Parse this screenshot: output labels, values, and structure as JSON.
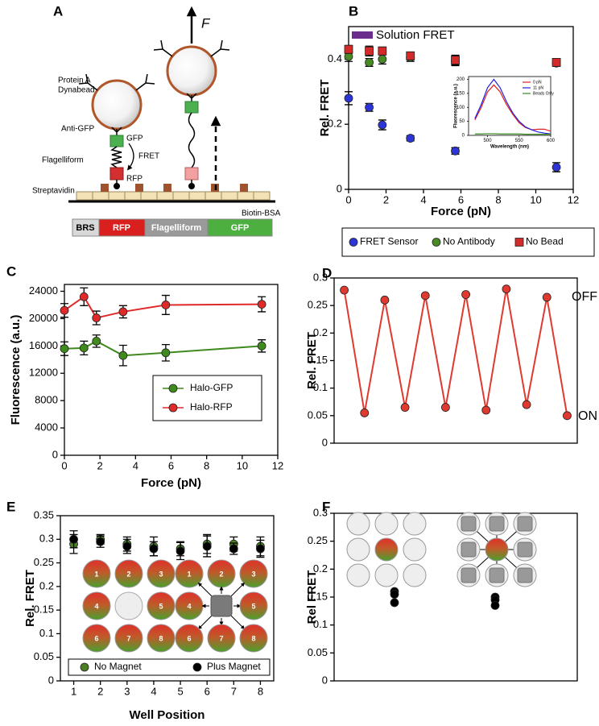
{
  "diagram": {
    "panel": "A",
    "force": "F",
    "bead": [
      "Protein A",
      "Dynabead"
    ],
    "anti_gfp": "Anti-GFP",
    "gfp": "GFP",
    "fret": "FRET",
    "flagelliform": "Flagelliform",
    "rfp": "RFP",
    "streptavidin": "Streptavidin",
    "biotin_bsa": "Biotin-BSA",
    "construct": [
      "BRS",
      "RFP",
      "Flagelliform",
      "GFP"
    ]
  },
  "chart_data": [
    {
      "panel": "B",
      "type": "scatter",
      "x_label": "Force (pN)",
      "y_label": "Rel. FRET",
      "x": [
        0,
        1.1,
        1.8,
        3.3,
        5.7,
        11.1
      ],
      "series": [
        {
          "name": "FRET Sensor",
          "color": "#2d35d8",
          "marker": "circle",
          "values": [
            0.28,
            0.252,
            0.198,
            0.157,
            0.118,
            0.068
          ],
          "errors": [
            0.02,
            0.012,
            0.015,
            0.008,
            0.01,
            0.014
          ]
        },
        {
          "name": "No Antibody",
          "color": "#4a8a26",
          "marker": "circle",
          "values": [
            0.408,
            0.39,
            0.4,
            0.405,
            0.395,
            0.388
          ],
          "errors": [
            0.015,
            0.012,
            0.015,
            0.012,
            0.015,
            0.01
          ]
        },
        {
          "name": "No Bead",
          "color": "#d42a2a",
          "marker": "square",
          "values": [
            0.43,
            0.425,
            0.425,
            0.41,
            0.397,
            0.39
          ],
          "errors": [
            0.012,
            0.015,
            0.012,
            0.012,
            0.015,
            0.012
          ]
        }
      ],
      "xlim": [
        0,
        12
      ],
      "xticks": [
        0,
        2,
        4,
        6,
        8,
        10,
        12
      ],
      "ylim": [
        0,
        0.5
      ],
      "yticks": [
        0,
        0.2,
        0.4
      ],
      "annotation": "Solution FRET",
      "annotation_color": "#6b2d8b",
      "legend": "bottom",
      "inset": {
        "type": "line",
        "x_label": "Wavelength (nm)",
        "y_label": "Fluorescence (a.u.)",
        "x": [
          480,
          490,
          500,
          510,
          520,
          530,
          540,
          550,
          560,
          570,
          580,
          590,
          600
        ],
        "series": [
          {
            "name": "0 pN",
            "color": "#e02020",
            "values": [
              55,
              100,
              155,
              180,
              155,
              110,
              75,
              45,
              28,
              20,
              22,
              22,
              15
            ]
          },
          {
            "name": "11 pN",
            "color": "#2020e0",
            "values": [
              60,
              110,
              170,
              200,
              170,
              120,
              80,
              50,
              30,
              20,
              12,
              8,
              5
            ]
          },
          {
            "name": "Beads Only",
            "color": "#3a8a20",
            "values": [
              5,
              5,
              6,
              6,
              5,
              5,
              5,
              5,
              4,
              4,
              4,
              4,
              4
            ]
          }
        ],
        "xlim": [
          470,
          600
        ],
        "xticks": [
          500,
          550,
          600
        ],
        "ylim": [
          0,
          210
        ],
        "yticks": [
          0,
          50,
          100,
          150,
          200
        ],
        "legend": "upper right"
      }
    },
    {
      "panel": "C",
      "type": "line",
      "x_label": "Force (pN)",
      "y_label": "Fluorescence (a.u.)",
      "x": [
        0,
        1.1,
        1.8,
        3.3,
        5.7,
        11.1
      ],
      "series": [
        {
          "name": "Halo-GFP",
          "color": "#3f8a1c",
          "marker": "circle",
          "values": [
            15600,
            15700,
            16700,
            14600,
            15000,
            16000
          ],
          "errors": [
            1000,
            1000,
            900,
            1500,
            1200,
            900
          ]
        },
        {
          "name": "Halo-RFP",
          "color": "#e02a2a",
          "marker": "circle",
          "values": [
            21200,
            23200,
            20100,
            21000,
            22000,
            22100
          ],
          "errors": [
            1000,
            1300,
            1000,
            900,
            1400,
            1100
          ]
        }
      ],
      "xlim": [
        0,
        12
      ],
      "xticks": [
        0,
        2,
        4,
        6,
        8,
        10,
        12
      ],
      "ylim": [
        0,
        25000
      ],
      "yticks": [
        0,
        4000,
        8000,
        12000,
        16000,
        20000,
        24000
      ],
      "legend": "lower right"
    },
    {
      "panel": "D",
      "type": "line",
      "y_label": "Rel. FRET",
      "categories": [
        null,
        null,
        null,
        null,
        null,
        null,
        null,
        null,
        null,
        null,
        null,
        null
      ],
      "values": [
        0.278,
        0.055,
        0.26,
        0.065,
        0.268,
        0.065,
        0.27,
        0.06,
        0.28,
        0.07,
        0.265,
        0.05
      ],
      "color": "#e03a30",
      "ylim": [
        0,
        0.3
      ],
      "yticks": [
        0,
        0.05,
        0.1,
        0.15,
        0.2,
        0.25,
        0.3
      ],
      "labels": {
        "off": "OFF",
        "on": "ON"
      }
    },
    {
      "panel": "E",
      "type": "scatter",
      "x_label": "Well Position",
      "y_label": "Rel. FRET",
      "categories": [
        "1",
        "2",
        "3",
        "4",
        "5",
        "6",
        "7",
        "8"
      ],
      "series": [
        {
          "name": "No Magnet",
          "color": "#4a7f24",
          "marker": "circle",
          "values": [
            0.29,
            0.3,
            0.29,
            0.285,
            0.28,
            0.29,
            0.29,
            0.285
          ],
          "errors": [
            0.02,
            0.01,
            0.015,
            0.02,
            0.015,
            0.02,
            0.015,
            0.02
          ]
        },
        {
          "name": "Plus Magnet",
          "color": "#000000",
          "marker": "circle",
          "values": [
            0.3,
            0.295,
            0.285,
            0.28,
            0.275,
            0.285,
            0.28,
            0.28
          ],
          "errors": [
            0.018,
            0.012,
            0.015,
            0.015,
            0.018,
            0.022,
            0.012,
            0.018
          ]
        }
      ],
      "ylim": [
        0,
        0.35
      ],
      "yticks": [
        0,
        0.05,
        0.1,
        0.15,
        0.2,
        0.25,
        0.3,
        0.35
      ],
      "legend": "bottom",
      "well_labels": [
        "1",
        "2",
        "3",
        "4",
        "5",
        "6",
        "7",
        "8"
      ]
    },
    {
      "panel": "F",
      "type": "scatter",
      "y_label": "Rel FRET",
      "categories": [
        null,
        null
      ],
      "values": [
        [
          0.16,
          0.155,
          0.14
        ],
        [
          0.15,
          0.145,
          0.135
        ]
      ],
      "color": "#000000",
      "ylim": [
        0,
        0.3
      ],
      "yticks": [
        0,
        0.05,
        0.1,
        0.15,
        0.2,
        0.25,
        0.3
      ]
    }
  ]
}
